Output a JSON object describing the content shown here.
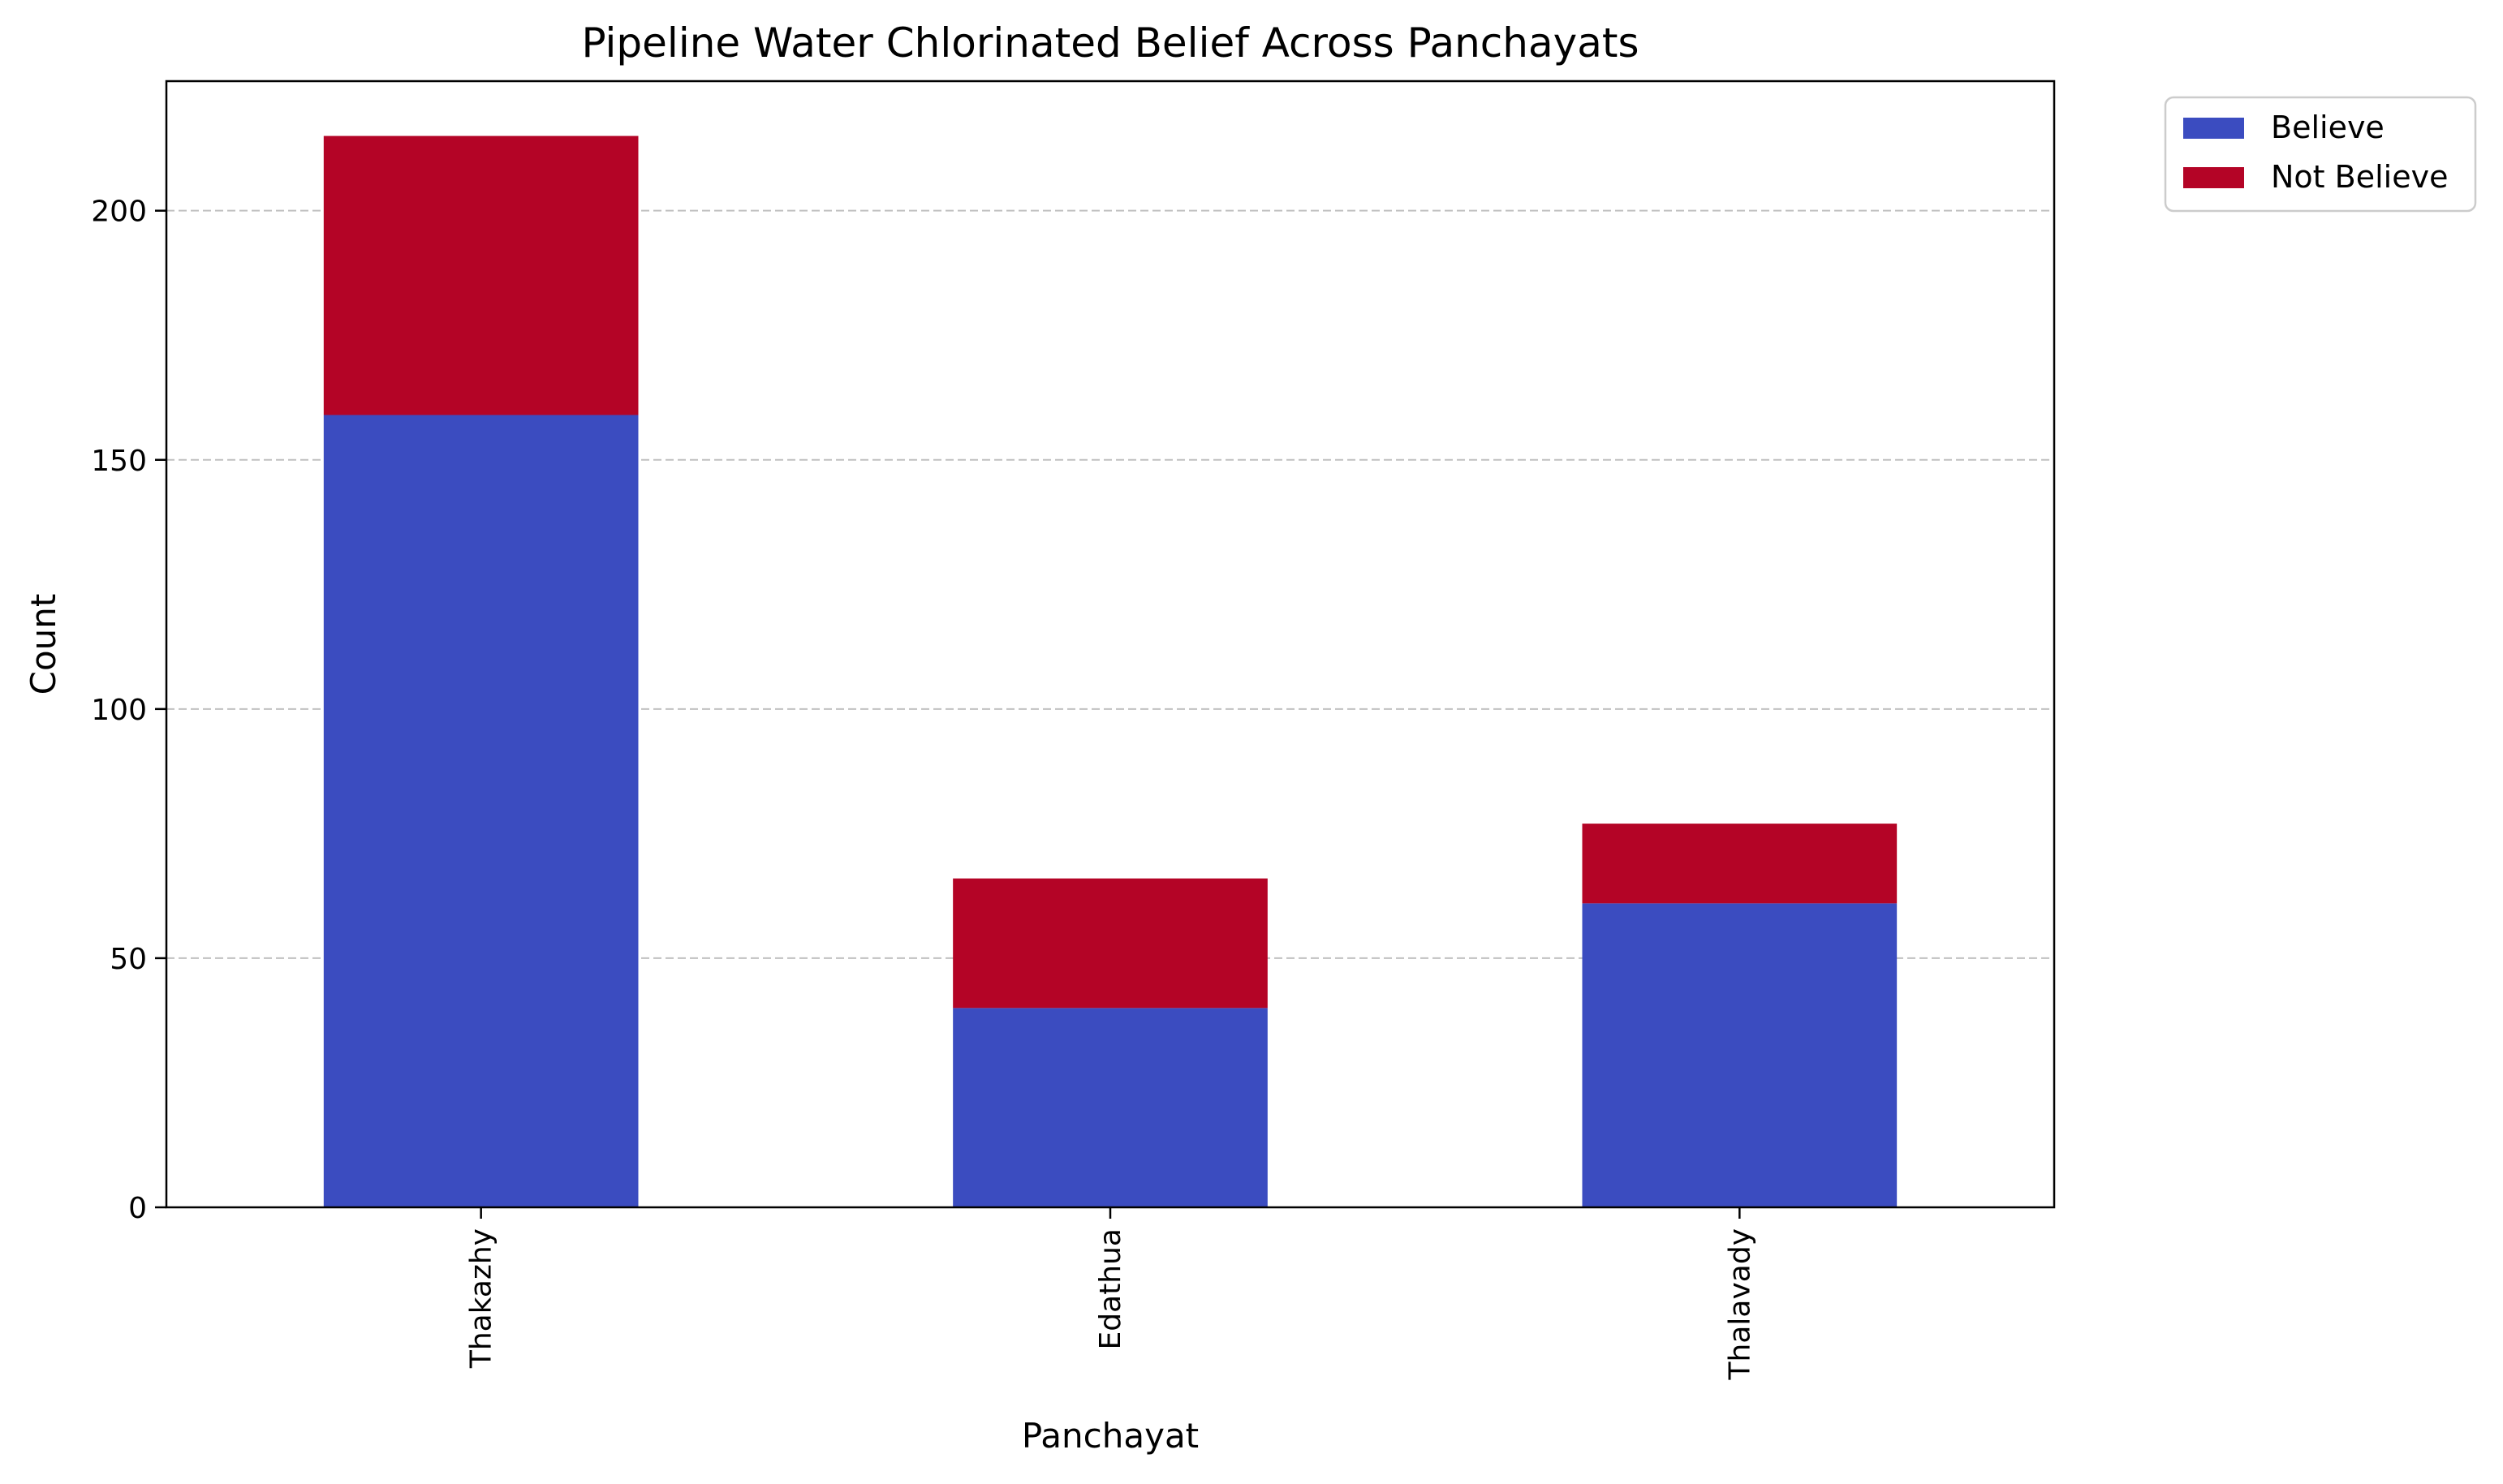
{
  "chart_data": {
    "type": "bar",
    "stacked": true,
    "title": "Pipeline Water Chlorinated Belief Across Panchayats",
    "xlabel": "Panchayat",
    "ylabel": "Count",
    "categories": [
      "Thakazhy",
      "Edathua",
      "Thalavady"
    ],
    "series": [
      {
        "name": "Believe",
        "values": [
          159,
          40,
          61
        ],
        "color": "#3b4cc0"
      },
      {
        "name": "Not Believe",
        "values": [
          56,
          26,
          16
        ],
        "color": "#b40426"
      }
    ],
    "ylim": [
      0,
      226
    ],
    "yticks": [
      0,
      50,
      100,
      150,
      200
    ],
    "grid": {
      "y": true,
      "x": false,
      "style": "dashed",
      "color": "#c0c0c0"
    },
    "legend": {
      "placement": "outside-top-right"
    }
  }
}
